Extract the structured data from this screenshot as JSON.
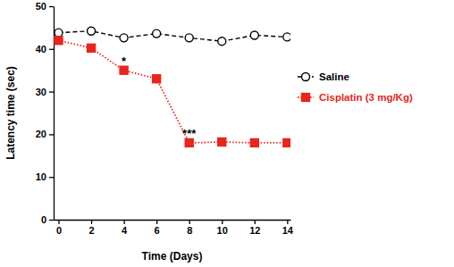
{
  "chart_data": {
    "type": "line",
    "x_label": "Time (Days)",
    "y_label": "Latency time (sec)",
    "x": [
      0,
      2,
      4,
      6,
      8,
      10,
      12,
      14
    ],
    "xlim": [
      -0.3,
      14.2
    ],
    "xticks": [
      0,
      2,
      4,
      6,
      8,
      10,
      12,
      14
    ],
    "ylim": [
      0,
      50
    ],
    "yticks": [
      0,
      10,
      20,
      30,
      40,
      50
    ],
    "grid": false,
    "legend": "right",
    "series": [
      {
        "name": "Saline",
        "color": "#000000",
        "marker": "open-circle",
        "line_style": "dashed",
        "values": [
          43.8,
          44.2,
          42.6,
          43.6,
          42.6,
          41.8,
          43.2,
          42.8
        ]
      },
      {
        "name": "Cisplatin (3 mg/Kg)",
        "color": "#e8261c",
        "marker": "square",
        "line_style": "dotted",
        "values": [
          42.0,
          40.2,
          35.0,
          33.0,
          18.0,
          18.2,
          18.0,
          18.0
        ]
      }
    ],
    "annotations": [
      {
        "text": "*",
        "x": 4,
        "y": 35.0
      },
      {
        "text": "***",
        "x": 8,
        "y": 18.0
      }
    ]
  }
}
